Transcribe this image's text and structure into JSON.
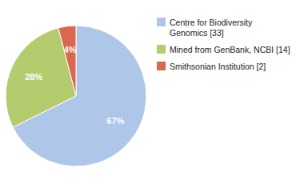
{
  "chart_data": {
    "type": "pie",
    "categories": [
      "Centre for Biodiversity\nGenomics [33]",
      "Mined from GenBank, NCBI [14]",
      "Smithsonian Institution [2]"
    ],
    "values": [
      67,
      28,
      4
    ],
    "value_labels": [
      "67%",
      "28%",
      "4%"
    ],
    "colors": [
      "#aec6e8",
      "#b5cc6e",
      "#d9694e"
    ],
    "data_labels": true,
    "legend": "upper right"
  }
}
